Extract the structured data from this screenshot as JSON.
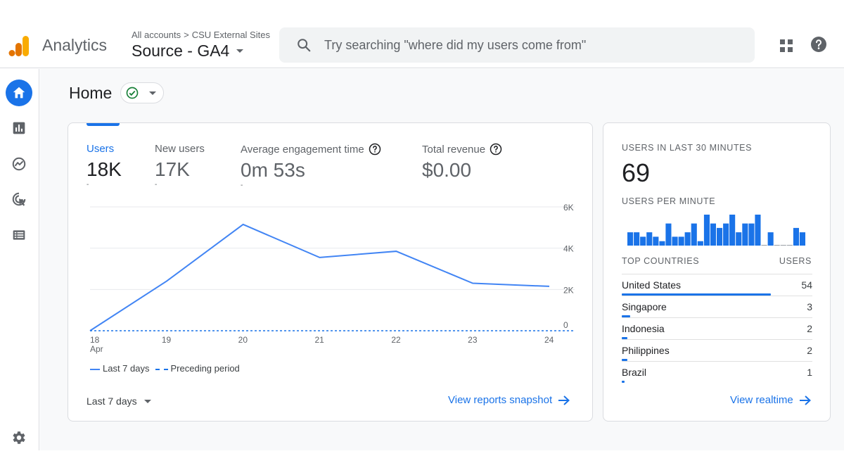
{
  "header": {
    "brand": "Analytics",
    "breadcrumb": {
      "root": "All accounts",
      "separator": ">",
      "account": "CSU External Sites"
    },
    "property": "Source - GA4",
    "search_placeholder": "Try searching \"where did my users come from\""
  },
  "sidebar": {
    "items": [
      {
        "name": "home",
        "icon": "home-icon",
        "active": true
      },
      {
        "name": "reports",
        "icon": "bar-chart-icon",
        "active": false
      },
      {
        "name": "explore",
        "icon": "explore-icon",
        "active": false
      },
      {
        "name": "advertising",
        "icon": "target-cursor-icon",
        "active": false
      },
      {
        "name": "configure",
        "icon": "list-icon",
        "active": false
      }
    ],
    "settings_icon": "gear-icon"
  },
  "page": {
    "title": "Home"
  },
  "overview": {
    "metrics": [
      {
        "label": "Users",
        "value": "18K",
        "dash": "-",
        "active": true,
        "help": false
      },
      {
        "label": "New users",
        "value": "17K",
        "dash": "-",
        "active": false,
        "help": false
      },
      {
        "label": "Average engagement time",
        "value": "0m 53s",
        "dash": "-",
        "active": false,
        "help": true
      },
      {
        "label": "Total revenue",
        "value": "$0.00",
        "dash": "",
        "active": false,
        "help": true
      }
    ],
    "legend": {
      "current": "Last 7 days",
      "previous": "Preceding period"
    },
    "period": "Last 7 days",
    "link": "View reports snapshot"
  },
  "chart_data": {
    "type": "line",
    "x": [
      "18",
      "19",
      "20",
      "21",
      "22",
      "23",
      "24"
    ],
    "x_sublabel_first": "Apr",
    "series": [
      {
        "name": "Last 7 days",
        "values": [
          0,
          2400,
          5150,
          3550,
          3850,
          2300,
          2150
        ],
        "style": "solid",
        "color": "#4285f4"
      },
      {
        "name": "Preceding period",
        "values": [
          0,
          0,
          0,
          0,
          0,
          0,
          0
        ],
        "style": "dashed",
        "color": "#1a73e8"
      }
    ],
    "yticks": [
      "0",
      "2K",
      "4K",
      "6K"
    ],
    "ylim": [
      0,
      6000
    ],
    "grid": true,
    "legend_position": "bottom-left"
  },
  "realtime": {
    "users_label": "USERS IN LAST 30 MINUTES",
    "users_value": "69",
    "per_minute_label": "USERS PER MINUTE",
    "per_minute": [
      3,
      3,
      2,
      3,
      2,
      1,
      5,
      2,
      2,
      3,
      5,
      1,
      7,
      5,
      4,
      5,
      7,
      3,
      5,
      5,
      7,
      0,
      3,
      0,
      0,
      0,
      4,
      3
    ],
    "countries_header": "TOP COUNTRIES",
    "users_header": "USERS",
    "countries": [
      {
        "name": "United States",
        "value": "54",
        "share": 1.0
      },
      {
        "name": "Singapore",
        "value": "3",
        "share": 0.056
      },
      {
        "name": "Indonesia",
        "value": "2",
        "share": 0.037
      },
      {
        "name": "Philippines",
        "value": "2",
        "share": 0.037
      },
      {
        "name": "Brazil",
        "value": "1",
        "share": 0.019
      }
    ],
    "link": "View realtime"
  },
  "colors": {
    "accent": "#1a73e8",
    "line": "#4285f4",
    "logo_orange": "#f9ab00",
    "logo_dark": "#e37400",
    "check_green": "#188038"
  }
}
